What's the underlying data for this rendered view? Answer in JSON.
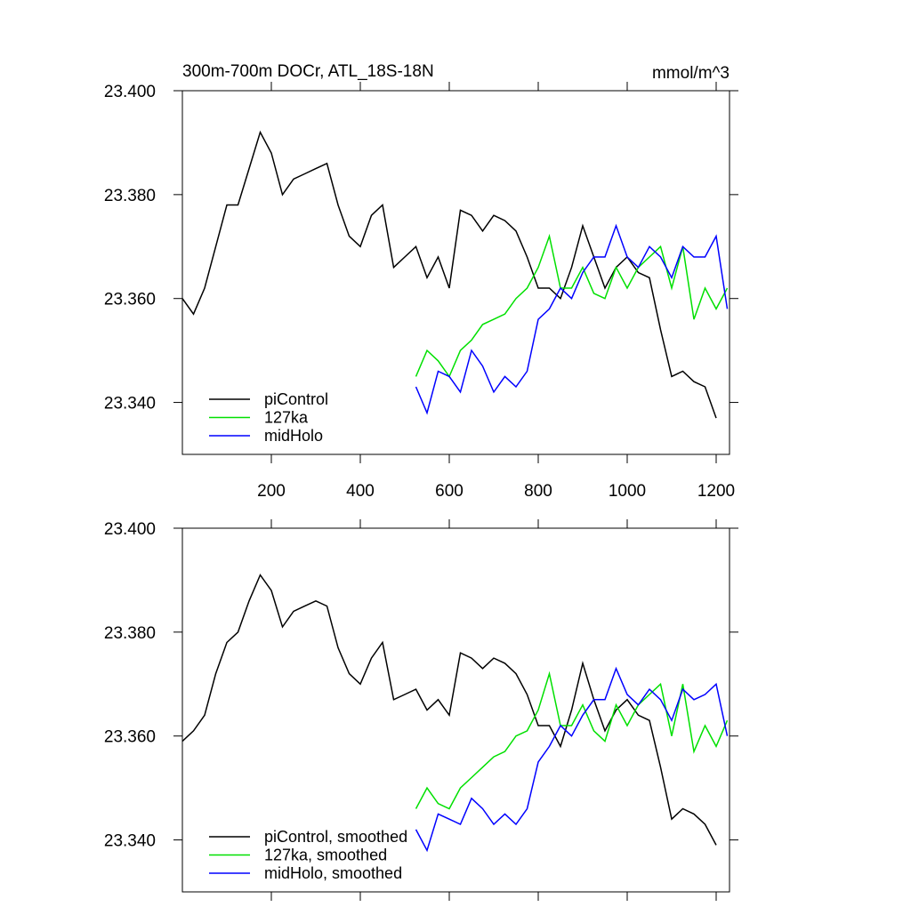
{
  "chart_data": [
    {
      "type": "line",
      "title": "300m-700m DOCr, ATL_18S-18N",
      "subtitle": "mmol/m^3",
      "xlim": [
        0,
        1230
      ],
      "xticks": [
        200,
        400,
        600,
        800,
        1000,
        1200
      ],
      "ylim": [
        23.33,
        23.4
      ],
      "yticks": [
        {
          "value": 23.34,
          "label": "23.340"
        },
        {
          "value": 23.36,
          "label": "23.360"
        },
        {
          "value": 23.38,
          "label": "23.380"
        },
        {
          "value": 23.4,
          "label": "23.400"
        }
      ],
      "legend": "lower left",
      "series": [
        {
          "name": "piControl",
          "color": "#000000",
          "x": [
            0,
            25,
            50,
            75,
            100,
            125,
            150,
            175,
            200,
            225,
            250,
            275,
            300,
            325,
            350,
            375,
            400,
            425,
            450,
            475,
            500,
            525,
            550,
            575,
            600,
            625,
            650,
            675,
            700,
            725,
            750,
            775,
            800,
            825,
            850,
            875,
            900,
            925,
            950,
            975,
            1000,
            1025,
            1050,
            1075,
            1100,
            1125,
            1150,
            1175,
            1200
          ],
          "values": [
            23.36,
            23.357,
            23.362,
            23.37,
            23.378,
            23.378,
            23.385,
            23.392,
            23.388,
            23.38,
            23.383,
            23.384,
            23.385,
            23.386,
            23.378,
            23.372,
            23.37,
            23.376,
            23.378,
            23.366,
            23.368,
            23.37,
            23.364,
            23.368,
            23.362,
            23.377,
            23.376,
            23.373,
            23.376,
            23.375,
            23.373,
            23.368,
            23.362,
            23.362,
            23.36,
            23.366,
            23.374,
            23.368,
            23.362,
            23.366,
            23.368,
            23.365,
            23.364,
            23.354,
            23.345,
            23.346,
            23.344,
            23.343,
            23.337
          ]
        },
        {
          "name": "127ka",
          "color": "#00e000",
          "x": [
            525,
            550,
            575,
            600,
            625,
            650,
            675,
            700,
            725,
            750,
            775,
            800,
            825,
            850,
            875,
            900,
            925,
            950,
            975,
            1000,
            1025,
            1050,
            1075,
            1100,
            1125,
            1150,
            1175,
            1200,
            1225
          ],
          "values": [
            23.345,
            23.35,
            23.348,
            23.345,
            23.35,
            23.352,
            23.355,
            23.356,
            23.357,
            23.36,
            23.362,
            23.366,
            23.372,
            23.362,
            23.362,
            23.366,
            23.361,
            23.36,
            23.366,
            23.362,
            23.366,
            23.368,
            23.37,
            23.362,
            23.37,
            23.356,
            23.362,
            23.358,
            23.362
          ]
        },
        {
          "name": "midHolo",
          "color": "#0000ff",
          "x": [
            525,
            550,
            575,
            600,
            625,
            650,
            675,
            700,
            725,
            750,
            775,
            800,
            825,
            850,
            875,
            900,
            925,
            950,
            975,
            1000,
            1025,
            1050,
            1075,
            1100,
            1125,
            1150,
            1175,
            1200,
            1225
          ],
          "values": [
            23.343,
            23.338,
            23.346,
            23.345,
            23.342,
            23.35,
            23.347,
            23.342,
            23.345,
            23.343,
            23.346,
            23.356,
            23.358,
            23.362,
            23.36,
            23.365,
            23.368,
            23.368,
            23.374,
            23.368,
            23.366,
            23.37,
            23.368,
            23.364,
            23.37,
            23.368,
            23.368,
            23.372,
            23.358
          ]
        }
      ]
    },
    {
      "type": "line",
      "xlim": [
        0,
        1230
      ],
      "xticks": [
        200,
        400,
        600,
        800,
        1000,
        1200
      ],
      "ylim": [
        23.33,
        23.4
      ],
      "yticks": [
        {
          "value": 23.34,
          "label": "23.340"
        },
        {
          "value": 23.36,
          "label": "23.360"
        },
        {
          "value": 23.38,
          "label": "23.380"
        },
        {
          "value": 23.4,
          "label": "23.400"
        }
      ],
      "legend": "lower left",
      "series": [
        {
          "name": "piControl, smoothed",
          "color": "#000000",
          "x": [
            0,
            25,
            50,
            75,
            100,
            125,
            150,
            175,
            200,
            225,
            250,
            275,
            300,
            325,
            350,
            375,
            400,
            425,
            450,
            475,
            500,
            525,
            550,
            575,
            600,
            625,
            650,
            675,
            700,
            725,
            750,
            775,
            800,
            825,
            850,
            875,
            900,
            925,
            950,
            975,
            1000,
            1025,
            1050,
            1075,
            1100,
            1125,
            1150,
            1175,
            1200
          ],
          "values": [
            23.359,
            23.361,
            23.364,
            23.372,
            23.378,
            23.38,
            23.386,
            23.391,
            23.388,
            23.381,
            23.384,
            23.385,
            23.386,
            23.385,
            23.377,
            23.372,
            23.37,
            23.375,
            23.378,
            23.367,
            23.368,
            23.369,
            23.365,
            23.367,
            23.364,
            23.376,
            23.375,
            23.373,
            23.375,
            23.374,
            23.372,
            23.368,
            23.362,
            23.362,
            23.358,
            23.365,
            23.374,
            23.367,
            23.361,
            23.365,
            23.367,
            23.364,
            23.363,
            23.354,
            23.344,
            23.346,
            23.345,
            23.343,
            23.339
          ]
        },
        {
          "name": "127ka, smoothed",
          "color": "#00e000",
          "x": [
            525,
            550,
            575,
            600,
            625,
            650,
            675,
            700,
            725,
            750,
            775,
            800,
            825,
            850,
            875,
            900,
            925,
            950,
            975,
            1000,
            1025,
            1050,
            1075,
            1100,
            1125,
            1150,
            1175,
            1200,
            1225
          ],
          "values": [
            23.346,
            23.35,
            23.347,
            23.346,
            23.35,
            23.352,
            23.354,
            23.356,
            23.357,
            23.36,
            23.361,
            23.365,
            23.372,
            23.362,
            23.362,
            23.366,
            23.361,
            23.359,
            23.366,
            23.362,
            23.366,
            23.368,
            23.37,
            23.36,
            23.37,
            23.357,
            23.362,
            23.358,
            23.363
          ]
        },
        {
          "name": "midHolo, smoothed",
          "color": "#0000ff",
          "x": [
            525,
            550,
            575,
            600,
            625,
            650,
            675,
            700,
            725,
            750,
            775,
            800,
            825,
            850,
            875,
            900,
            925,
            950,
            975,
            1000,
            1025,
            1050,
            1075,
            1100,
            1125,
            1150,
            1175,
            1200,
            1225
          ],
          "values": [
            23.342,
            23.338,
            23.345,
            23.344,
            23.343,
            23.348,
            23.346,
            23.343,
            23.345,
            23.343,
            23.346,
            23.355,
            23.358,
            23.362,
            23.36,
            23.364,
            23.367,
            23.367,
            23.373,
            23.368,
            23.366,
            23.369,
            23.367,
            23.363,
            23.369,
            23.367,
            23.368,
            23.37,
            23.36
          ]
        }
      ]
    }
  ]
}
